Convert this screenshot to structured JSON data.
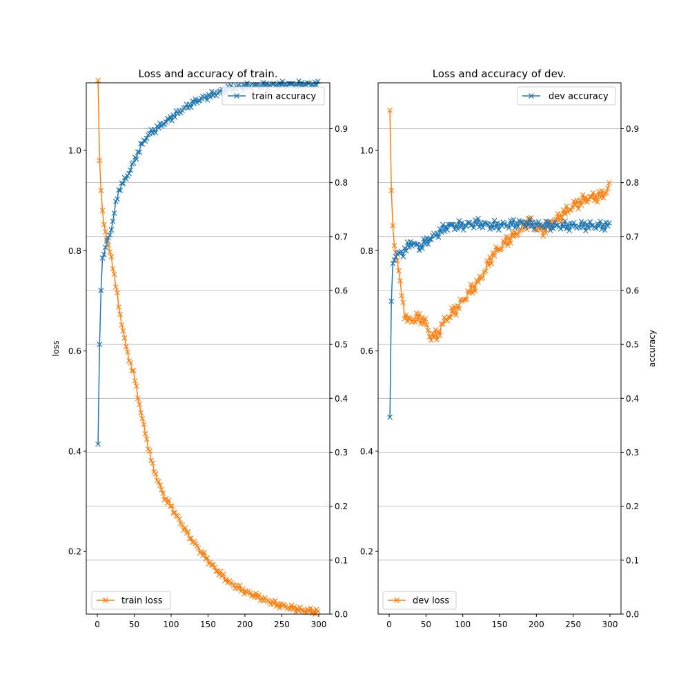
{
  "chart_data": [
    {
      "type": "line",
      "title": "Loss and accuracy of train.",
      "xlabel": "",
      "ylabel": "loss",
      "y2label": "",
      "xlim": [
        -15,
        315
      ],
      "ylim": [
        0.075,
        1.135
      ],
      "y2lim": [
        0.0,
        0.985
      ],
      "xticks": [
        0,
        50,
        100,
        150,
        200,
        250,
        300
      ],
      "yticks": [
        0.2,
        0.4,
        0.6,
        0.8,
        1.0
      ],
      "y2ticks": [
        0.0,
        0.1,
        0.2,
        0.3,
        0.4,
        0.5,
        0.6,
        0.7,
        0.8,
        0.9
      ],
      "grid": "right-axis horizontal",
      "legend_loss_placement": "bottom-left",
      "legend_acc_placement": "top-right",
      "series": [
        {
          "name": "train loss",
          "axis": "left",
          "color": "#ff7f0e",
          "keypoints": [
            [
              1,
              1.14
            ],
            [
              3,
              0.98
            ],
            [
              5,
              0.92
            ],
            [
              8,
              0.86
            ],
            [
              12,
              0.83
            ],
            [
              20,
              0.78
            ],
            [
              30,
              0.68
            ],
            [
              40,
              0.6
            ],
            [
              50,
              0.55
            ],
            [
              60,
              0.47
            ],
            [
              75,
              0.37
            ],
            [
              90,
              0.31
            ],
            [
              100,
              0.29
            ],
            [
              120,
              0.24
            ],
            [
              140,
              0.2
            ],
            [
              160,
              0.165
            ],
            [
              180,
              0.137
            ],
            [
              200,
              0.12
            ],
            [
              220,
              0.108
            ],
            [
              240,
              0.096
            ],
            [
              260,
              0.088
            ],
            [
              280,
              0.082
            ],
            [
              300,
              0.08
            ]
          ]
        },
        {
          "name": "train accuracy",
          "axis": "right",
          "color": "#1f77b4",
          "keypoints": [
            [
              1,
              0.315
            ],
            [
              2,
              0.45
            ],
            [
              3,
              0.5
            ],
            [
              4,
              0.55
            ],
            [
              5,
              0.6
            ],
            [
              7,
              0.66
            ],
            [
              10,
              0.67
            ],
            [
              12,
              0.69
            ],
            [
              16,
              0.7
            ],
            [
              20,
              0.72
            ],
            [
              25,
              0.76
            ],
            [
              30,
              0.79
            ],
            [
              40,
              0.81
            ],
            [
              50,
              0.84
            ],
            [
              60,
              0.87
            ],
            [
              70,
              0.89
            ],
            [
              80,
              0.9
            ],
            [
              100,
              0.92
            ],
            [
              120,
              0.94
            ],
            [
              140,
              0.955
            ],
            [
              160,
              0.965
            ],
            [
              180,
              0.975
            ],
            [
              200,
              0.978
            ],
            [
              230,
              0.98
            ],
            [
              260,
              0.982
            ],
            [
              300,
              0.982
            ]
          ]
        }
      ]
    },
    {
      "type": "line",
      "title": "Loss and accuracy of dev.",
      "xlabel": "",
      "ylabel": "",
      "y2label": "accuracy",
      "xlim": [
        -15,
        315
      ],
      "ylim": [
        0.075,
        1.135
      ],
      "y2lim": [
        0.0,
        0.985
      ],
      "xticks": [
        0,
        50,
        100,
        150,
        200,
        250,
        300
      ],
      "yticks": [
        0.2,
        0.4,
        0.6,
        0.8,
        1.0
      ],
      "y2ticks": [
        0.0,
        0.1,
        0.2,
        0.3,
        0.4,
        0.5,
        0.6,
        0.7,
        0.8,
        0.9
      ],
      "grid": "right-axis horizontal",
      "legend_loss_placement": "bottom-left",
      "legend_acc_placement": "top-right",
      "series": [
        {
          "name": "dev loss",
          "axis": "left",
          "color": "#ff7f0e",
          "keypoints": [
            [
              1,
              1.08
            ],
            [
              2,
              1.0
            ],
            [
              3,
              0.92
            ],
            [
              5,
              0.85
            ],
            [
              7,
              0.81
            ],
            [
              10,
              0.79
            ],
            [
              15,
              0.74
            ],
            [
              20,
              0.68
            ],
            [
              25,
              0.66
            ],
            [
              35,
              0.665
            ],
            [
              45,
              0.665
            ],
            [
              50,
              0.655
            ],
            [
              55,
              0.63
            ],
            [
              65,
              0.63
            ],
            [
              75,
              0.66
            ],
            [
              85,
              0.675
            ],
            [
              95,
              0.69
            ],
            [
              100,
              0.7
            ],
            [
              110,
              0.72
            ],
            [
              120,
              0.735
            ],
            [
              130,
              0.76
            ],
            [
              140,
              0.79
            ],
            [
              150,
              0.805
            ],
            [
              160,
              0.82
            ],
            [
              170,
              0.83
            ],
            [
              180,
              0.845
            ],
            [
              190,
              0.86
            ],
            [
              200,
              0.845
            ],
            [
              210,
              0.84
            ],
            [
              220,
              0.855
            ],
            [
              230,
              0.865
            ],
            [
              250,
              0.89
            ],
            [
              270,
              0.905
            ],
            [
              290,
              0.91
            ],
            [
              300,
              0.93
            ]
          ]
        },
        {
          "name": "dev accuracy",
          "axis": "right",
          "color": "#1f77b4",
          "keypoints": [
            [
              1,
              0.365
            ],
            [
              2,
              0.51
            ],
            [
              3,
              0.58
            ],
            [
              5,
              0.65
            ],
            [
              8,
              0.66
            ],
            [
              12,
              0.67
            ],
            [
              18,
              0.67
            ],
            [
              25,
              0.68
            ],
            [
              30,
              0.69
            ],
            [
              40,
              0.68
            ],
            [
              50,
              0.69
            ],
            [
              60,
              0.7
            ],
            [
              70,
              0.71
            ],
            [
              80,
              0.72
            ],
            [
              100,
              0.72
            ],
            [
              120,
              0.725
            ],
            [
              140,
              0.72
            ],
            [
              160,
              0.722
            ],
            [
              180,
              0.725
            ],
            [
              200,
              0.722
            ],
            [
              220,
              0.72
            ],
            [
              240,
              0.72
            ],
            [
              260,
              0.72
            ],
            [
              280,
              0.72
            ],
            [
              300,
              0.72
            ]
          ]
        }
      ]
    }
  ]
}
